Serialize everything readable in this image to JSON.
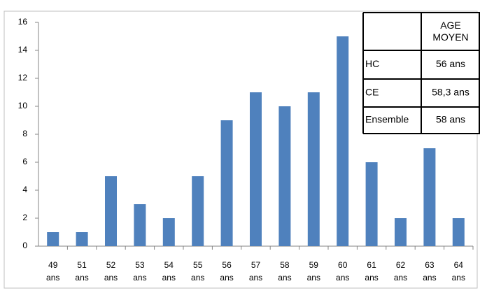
{
  "chart_data": {
    "type": "bar",
    "categories": [
      "49 ans",
      "51 ans",
      "52 ans",
      "53 ans",
      "54 ans",
      "55 ans",
      "56 ans",
      "57 ans",
      "58 ans",
      "59 ans",
      "60 ans",
      "61 ans",
      "62 ans",
      "63 ans",
      "64 ans"
    ],
    "values": [
      1,
      1,
      5,
      3,
      2,
      5,
      9,
      11,
      10,
      11,
      15,
      6,
      2,
      7,
      2
    ],
    "color": "#4f81bd",
    "ylim": [
      0,
      16
    ],
    "yticks": [
      0,
      2,
      4,
      6,
      8,
      10,
      12,
      14,
      16
    ],
    "grid": false
  },
  "table": {
    "column_header": "AGE MOYEN",
    "rows": [
      [
        "HC",
        "56 ans"
      ],
      [
        "CE",
        "58,3 ans"
      ],
      [
        "Ensemble",
        "58 ans"
      ]
    ]
  }
}
